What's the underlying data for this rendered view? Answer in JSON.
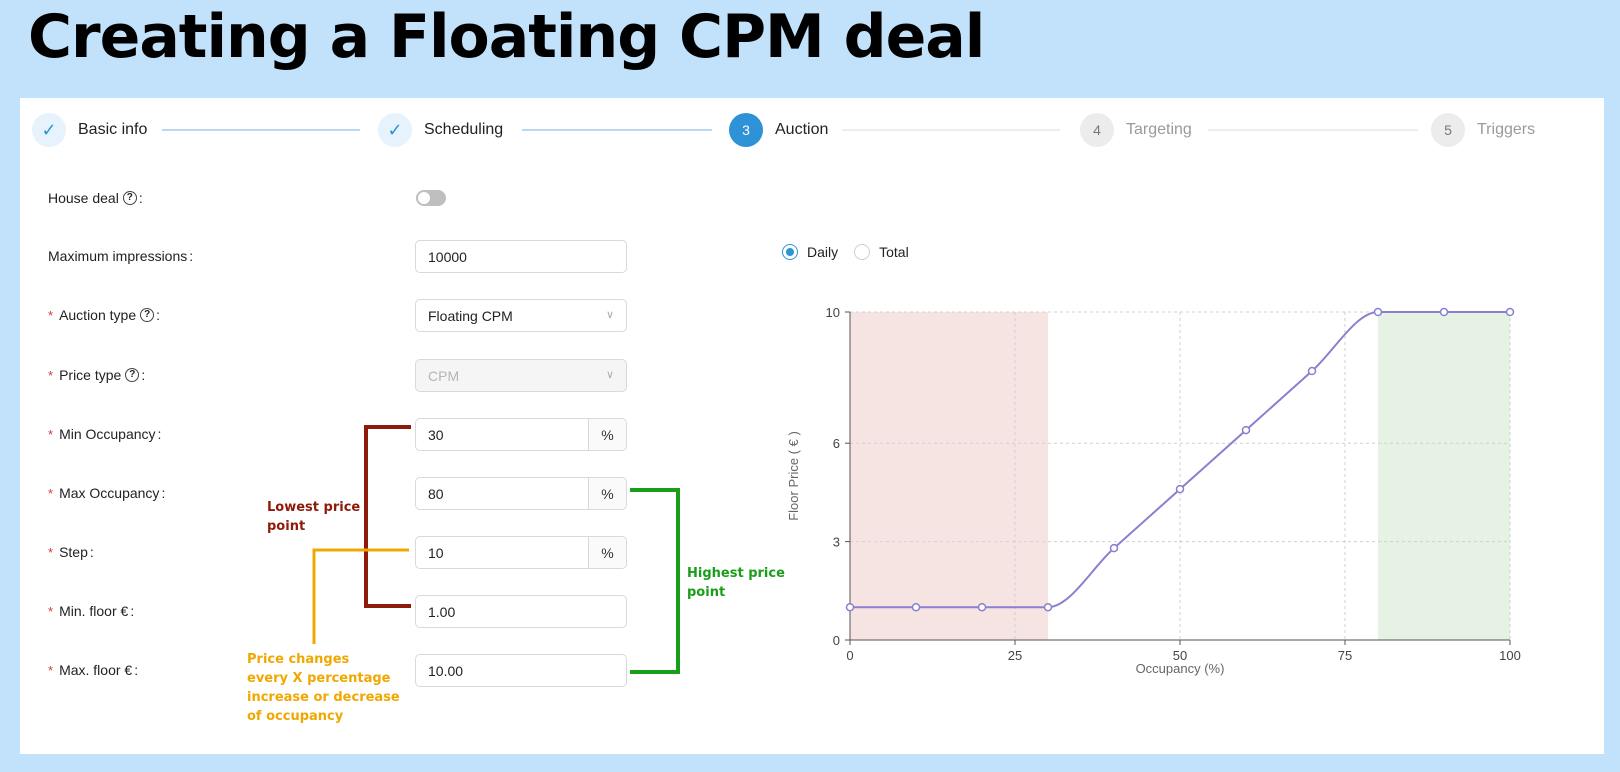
{
  "slide": {
    "title": "Creating a Floating CPM deal"
  },
  "stepper": {
    "steps": [
      {
        "num": "✓",
        "label": "Basic info",
        "state": "done"
      },
      {
        "num": "✓",
        "label": "Scheduling",
        "state": "done"
      },
      {
        "num": "3",
        "label": "Auction",
        "state": "active"
      },
      {
        "num": "4",
        "label": "Targeting",
        "state": "todo"
      },
      {
        "num": "5",
        "label": "Triggers",
        "state": "todo"
      }
    ]
  },
  "form": {
    "house_deal": {
      "label": "House deal",
      "colon": ":",
      "enabled": false
    },
    "max_impressions": {
      "label": "Maximum impressions",
      "colon": ":",
      "value": "10000"
    },
    "auction_type": {
      "required": "*",
      "label": "Auction type",
      "colon": ":",
      "value": "Floating CPM"
    },
    "price_type": {
      "required": "*",
      "label": "Price type",
      "colon": ":",
      "value": "CPM"
    },
    "min_occupancy": {
      "required": "*",
      "label": "Min Occupancy",
      "colon": ":",
      "value": "30",
      "unit": "%"
    },
    "max_occupancy": {
      "required": "*",
      "label": "Max Occupancy",
      "colon": ":",
      "value": "80",
      "unit": "%"
    },
    "step": {
      "required": "*",
      "label": "Step",
      "colon": ":",
      "value": "10",
      "unit": "%"
    },
    "min_floor": {
      "required": "*",
      "label": "Min. floor €",
      "colon": ":",
      "value": "1.00"
    },
    "max_floor": {
      "required": "*",
      "label": "Max. floor €",
      "colon": ":",
      "value": "10.00"
    }
  },
  "annotations": {
    "lowest": [
      "Lowest price",
      "point"
    ],
    "highest": [
      "Highest price",
      "point"
    ],
    "step_note": [
      "Price changes",
      "every X percentage",
      "increase or decrease",
      "of occupancy"
    ],
    "colors": {
      "red": "#8e1a0a",
      "green": "#1a9e1a",
      "orange": "#f0a800"
    }
  },
  "radios": {
    "daily": "Daily",
    "total": "Total",
    "selected": "Daily"
  },
  "chart_data": {
    "type": "line",
    "x": [
      0,
      10,
      20,
      30,
      40,
      50,
      60,
      70,
      80,
      90,
      100
    ],
    "values": [
      1,
      1,
      1,
      1,
      2.8,
      4.6,
      6.4,
      8.2,
      10,
      10,
      10
    ],
    "xlabel": "Occupancy (%)",
    "ylabel": "Floor Price ( € )",
    "xticks": [
      "0",
      "25",
      "50",
      "75",
      "100"
    ],
    "yticks": [
      "0",
      "3",
      "6",
      "10"
    ],
    "xlim": [
      0,
      100
    ],
    "ylim": [
      0,
      10
    ],
    "grid": true,
    "low_zone": [
      0,
      30
    ],
    "high_zone": [
      80,
      100
    ],
    "colors": {
      "line": "#8b7fd0",
      "low_zone": "#f6e4e2",
      "high_zone": "#e5f2e4"
    }
  }
}
